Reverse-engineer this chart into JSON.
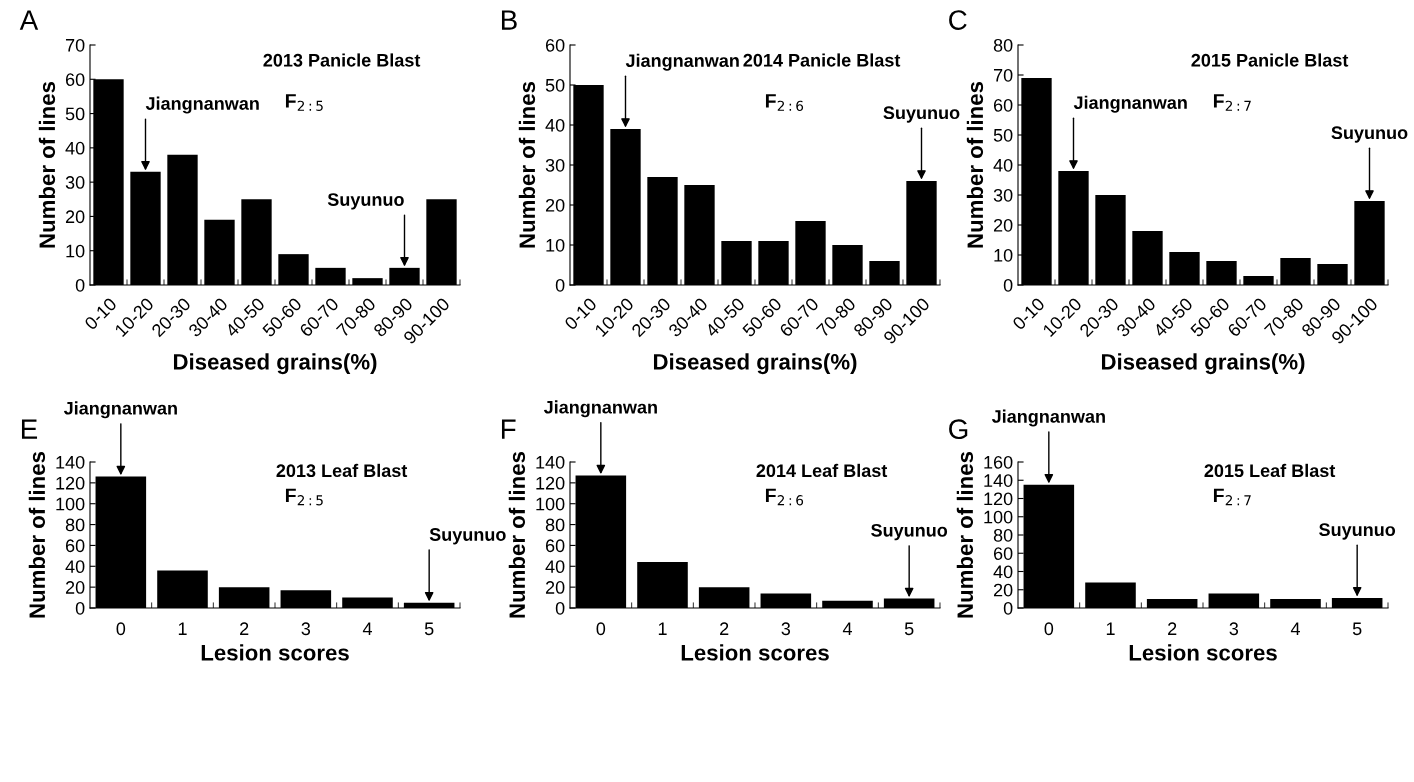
{
  "chart_data": [
    {
      "type": "bar",
      "title": "2013 Panicle Blast",
      "xlabel": "Diseased grains(%)",
      "ylabel": "Number of lines",
      "categories": [
        "0-10",
        "10-20",
        "20-30",
        "30-40",
        "40-50",
        "50-60",
        "60-70",
        "70-80",
        "80-90",
        "90-100"
      ],
      "values": [
        60,
        33,
        38,
        19,
        25,
        9,
        5,
        2,
        5,
        25
      ],
      "color": "#000000",
      "ylim": [
        0,
        70
      ],
      "yticks": [
        0,
        10,
        20,
        30,
        40,
        50,
        60,
        70
      ],
      "grid": false,
      "legend": false,
      "annotations": [
        "A",
        "F$_{2:5}$",
        {
          "text": "Jiangnanwan",
          "x": "10-20",
          "y": 33
        },
        {
          "text": "Suyunuo",
          "x": "80-90",
          "y": 5
        }
      ]
    },
    {
      "type": "bar",
      "title": "2014 Panicle Blast",
      "xlabel": "Diseased grains(%)",
      "ylabel": "Number of lines",
      "categories": [
        "0-10",
        "10-20",
        "20-30",
        "30-40",
        "40-50",
        "50-60",
        "60-70",
        "70-80",
        "80-90",
        "90-100"
      ],
      "values": [
        50,
        39,
        27,
        25,
        11,
        11,
        16,
        10,
        6,
        26
      ],
      "color": "#000000",
      "ylim": [
        0,
        60
      ],
      "yticks": [
        0,
        10,
        20,
        30,
        40,
        50,
        60
      ],
      "grid": false,
      "legend": false,
      "annotations": [
        "B",
        "F$_{2:6}$",
        {
          "text": "Jiangnanwan",
          "x": "10-20",
          "y": 39
        },
        {
          "text": "Suyunuo",
          "x": "90-100",
          "y": 26
        }
      ]
    },
    {
      "type": "bar",
      "title": "2015 Panicle Blast",
      "xlabel": "Diseased grains(%)",
      "ylabel": "Number of lines",
      "categories": [
        "0-10",
        "10-20",
        "20-30",
        "30-40",
        "40-50",
        "50-60",
        "60-70",
        "70-80",
        "80-90",
        "90-100"
      ],
      "values": [
        69,
        38,
        30,
        18,
        11,
        8,
        3,
        9,
        7,
        28
      ],
      "color": "#000000",
      "ylim": [
        0,
        80
      ],
      "yticks": [
        0,
        10,
        20,
        30,
        40,
        50,
        60,
        70,
        80
      ],
      "grid": false,
      "legend": false,
      "annotations": [
        "C",
        "F$_{2:7}$",
        {
          "text": "Jiangnanwan",
          "x": "10-20",
          "y": 38
        },
        {
          "text": "Suyunuo",
          "x": "90-100",
          "y": 28
        }
      ]
    },
    {
      "type": "bar",
      "title": "2013 Leaf Blast",
      "xlabel": "Lesion scores",
      "ylabel": "Number of lines",
      "categories": [
        "0",
        "1",
        "2",
        "3",
        "4",
        "5"
      ],
      "values": [
        126,
        36,
        20,
        17,
        10,
        5
      ],
      "color": "#000000",
      "ylim": [
        0,
        140
      ],
      "yticks": [
        0,
        20,
        40,
        60,
        80,
        100,
        120,
        140
      ],
      "grid": false,
      "legend": false,
      "annotations": [
        "E",
        "F$_{2:5}$",
        {
          "text": "Jiangnanwan",
          "x": "0",
          "y": 126
        },
        {
          "text": "Suyunuo",
          "x": "5",
          "y": 5
        }
      ]
    },
    {
      "type": "bar",
      "title": "2014 Leaf Blast",
      "xlabel": "Lesion scores",
      "ylabel": "Number of lines",
      "categories": [
        "0",
        "1",
        "2",
        "3",
        "4",
        "5"
      ],
      "values": [
        127,
        44,
        20,
        14,
        7,
        9
      ],
      "color": "#000000",
      "ylim": [
        0,
        140
      ],
      "yticks": [
        0,
        20,
        40,
        60,
        80,
        100,
        120,
        140
      ],
      "grid": false,
      "legend": false,
      "annotations": [
        "F",
        "F$_{2:6}$",
        {
          "text": "Jiangnanwan",
          "x": "0",
          "y": 127
        },
        {
          "text": "Suyunuo",
          "x": "5",
          "y": 9
        }
      ]
    },
    {
      "type": "bar",
      "title": "2015 Leaf Blast",
      "xlabel": "Lesion scores",
      "ylabel": "Number of lines",
      "categories": [
        "0",
        "1",
        "2",
        "3",
        "4",
        "5"
      ],
      "values": [
        135,
        28,
        10,
        16,
        10,
        11
      ],
      "color": "#000000",
      "ylim": [
        0,
        160
      ],
      "yticks": [
        0,
        20,
        40,
        60,
        80,
        100,
        120,
        140,
        160
      ],
      "grid": false,
      "legend": false,
      "annotations": [
        "G",
        "F$_{2:7}$",
        {
          "text": "Jiangnanwan",
          "x": "0",
          "y": 135
        },
        {
          "text": "Suyunuo",
          "x": "5",
          "y": 11
        }
      ]
    }
  ]
}
